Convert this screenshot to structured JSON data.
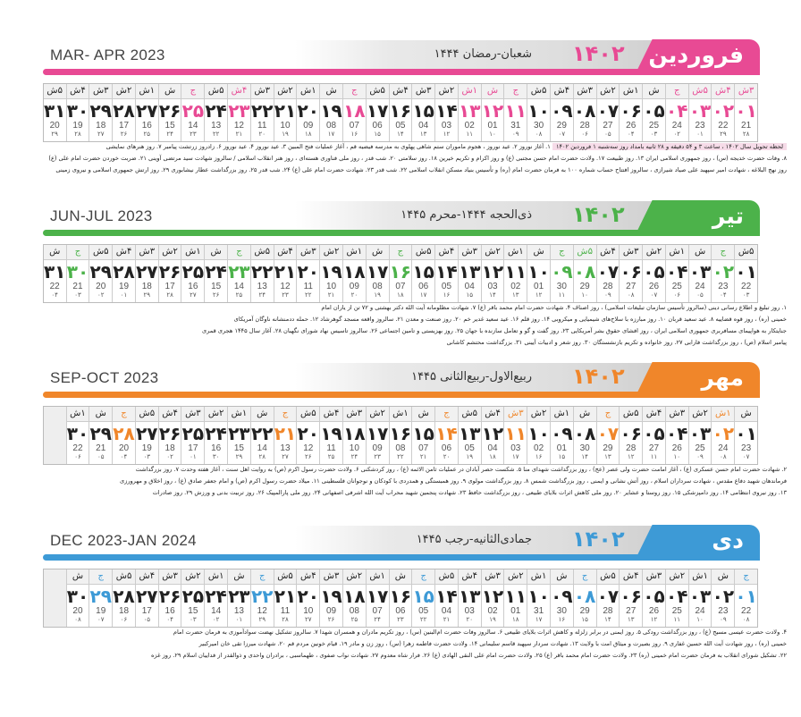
{
  "colors": {
    "farvardin": "#e84a94",
    "tir": "#4cb24a",
    "mehr": "#f0862a",
    "dey": "#3d9ad6"
  },
  "months": [
    {
      "name": "فروردین",
      "year": "۱۴۰۲",
      "hijri_title": "شعبان-رمضان ۱۴۴۴",
      "en_title": "MAR- APR 2023",
      "color": "#e84a94",
      "weekdays": [
        "۳ش",
        "۴ش",
        "۵ش",
        "ج",
        "ش",
        "۱ش",
        "۲ش",
        "۳ش",
        "۴ش",
        "۵ش",
        "ج",
        "ش",
        "۱ش",
        "۲ش",
        "۳ش",
        "۴ش",
        "۵ش",
        "ج",
        "ش",
        "۱ش",
        "۲ش",
        "۳ش",
        "۴ش",
        "۵ش",
        "ج",
        "ش",
        "۱ش",
        "۲ش",
        "۳ش",
        "۴ش",
        "۵ش"
      ],
      "days": [
        "۰۱",
        "۰۲",
        "۰۳",
        "۰۴",
        "۰۵",
        "۰۶",
        "۰۷",
        "۰۸",
        "۰۹",
        "۱۰",
        "۱۱",
        "۱۲",
        "۱۳",
        "۱۴",
        "۱۵",
        "۱۶",
        "۱۷",
        "۱۸",
        "۱۹",
        "۲۰",
        "۲۱",
        "۲۲",
        "۲۳",
        "۲۴",
        "۲۵",
        "۲۶",
        "۲۷",
        "۲۸",
        "۲۹",
        "۳۰",
        "۳۱"
      ],
      "gregorian": [
        "21",
        "22",
        "23",
        "24",
        "25",
        "26",
        "27",
        "28",
        "29",
        "30",
        "31",
        "01",
        "02",
        "03",
        "04",
        "05",
        "06",
        "07",
        "08",
        "09",
        "10",
        "11",
        "12",
        "13",
        "14",
        "15",
        "16",
        "17",
        "18",
        "19",
        "20"
      ],
      "hijri": [
        "۲۸",
        "۲۹",
        "۰۱",
        "۰۲",
        "۰۳",
        "۰۴",
        "۰۵",
        "۰۶",
        "۰۷",
        "۰۸",
        "۰۹",
        "۱۰",
        "۱۱",
        "۱۲",
        "۱۳",
        "۱۴",
        "۱۵",
        "۱۶",
        "۱۷",
        "۱۸",
        "۱۹",
        "۲۰",
        "۲۱",
        "۲۲",
        "۲۳",
        "۲۴",
        "۲۵",
        "۲۶",
        "۲۷",
        "۲۸",
        "۲۹"
      ],
      "holidays": [
        1,
        2,
        3,
        4,
        11,
        12,
        13,
        18,
        23,
        25
      ],
      "highlight": "لحظه تحویل سال ۱۴۰۲ ، ساعت ۳ و ۵۴ دقیقه و ۲۸ ثانیه بامداد روز سه‌شنبه ۱ فروردین ۱۴۰۲",
      "notes": [
        "۱. آغاز نوروز ۲. عید نوروز ، هجوم ماموران ستم شاهی پهلوی به مدرسه فیضیه قم ، آغاز عملیات فتح المبین ۳. عید نوروز ۴. عید نوروز ۶. زادروز زرتشت پیامبر ۷. روز هنرهای نمایشی",
        "۸. وفات حضرت خدیجه (س) ، روز جمهوری اسلامی ایران ۱۳. روز طبیعت ۱۷. ولادت حضرت امام حسن مجتبی (ع) و روز اکرام و تکریم خیرین ۱۸. روز سلامتی ۲۰. شب قدر ، روز ملی فناوری هسته‌ای ، روز هنر انقلاب اسلامی / سالروز شهادت سید مرتضی آوینی ۲۱. ضربت خوردن حضرت امام علی (ع)",
        "روز نهج البلاغه ، شهادت امیر سپهبد علی صیاد شیرازی ، سالروز افتتاح حساب شماره ۱۰۰ به فرمان حضرت امام (ره) و تأسیس بنیاد مسکن انقلاب اسلامی ۲۲. شب قدر ۲۳. شهادت حضرت امام علی (ع) ۲۴. شب قدر ۲۵. روز بزرگداشت عطار نیشابوری ۲۹. روز ارتش جمهوری اسلامی و نیروی زمینی"
      ]
    },
    {
      "name": "تیر",
      "year": "۱۴۰۲",
      "hijri_title": "ذی‌الحجه ۱۴۴۴-محرم ۱۴۴۵",
      "en_title": "JUN-JUL 2023",
      "color": "#4cb24a",
      "weekdays": [
        "۵ش",
        "ج",
        "ش",
        "۱ش",
        "۲ش",
        "۳ش",
        "۴ش",
        "۵ش",
        "ج",
        "ش",
        "۱ش",
        "۲ش",
        "۳ش",
        "۴ش",
        "۵ش",
        "ج",
        "ش",
        "۱ش",
        "۲ش",
        "۳ش",
        "۴ش",
        "۵ش",
        "ج",
        "ش",
        "۱ش",
        "۲ش",
        "۳ش",
        "۴ش",
        "۵ش",
        "ج",
        "ش"
      ],
      "days": [
        "۰۱",
        "۰۲",
        "۰۳",
        "۰۴",
        "۰۵",
        "۰۶",
        "۰۷",
        "۰۸",
        "۰۹",
        "۱۰",
        "۱۱",
        "۱۲",
        "۱۳",
        "۱۴",
        "۱۵",
        "۱۶",
        "۱۷",
        "۱۸",
        "۱۹",
        "۲۰",
        "۲۱",
        "۲۲",
        "۲۳",
        "۲۴",
        "۲۵",
        "۲۶",
        "۲۷",
        "۲۸",
        "۲۹",
        "۳۰",
        "۳۱"
      ],
      "gregorian": [
        "22",
        "23",
        "24",
        "25",
        "26",
        "27",
        "28",
        "29",
        "30",
        "01",
        "02",
        "03",
        "04",
        "05",
        "06",
        "07",
        "08",
        "09",
        "10",
        "11",
        "12",
        "13",
        "14",
        "15",
        "16",
        "17",
        "18",
        "19",
        "20",
        "21",
        "22"
      ],
      "hijri": [
        "۰۳",
        "۰۴",
        "۰۵",
        "۰۶",
        "۰۷",
        "۰۸",
        "۰۹",
        "۱۰",
        "۱۱",
        "۱۲",
        "۱۳",
        "۱۴",
        "۱۵",
        "۱۶",
        "۱۷",
        "۱۸",
        "۱۹",
        "۲۰",
        "۲۱",
        "۲۲",
        "۲۳",
        "۲۴",
        "۲۵",
        "۲۶",
        "۲۷",
        "۲۸",
        "۲۹",
        "۰۱",
        "۰۲",
        "۰۳",
        "۰۴"
      ],
      "holidays": [
        2,
        8,
        9,
        16,
        23,
        30
      ],
      "highlight": "",
      "notes": [
        "۱. روز تبلیغ و اطلاع رسانی دینی (سالروز تأسیس سازمان تبلیغات اسلامی) ، روز اصناف ۴. شهادت حضرت امام محمد باقر (ع) ۷. شهادت مظلومانه آیت الله دکتر بهشتی و ۷۲ تن از یاران امام",
        "خمینی (ره) ، روز قوه قضاییه ۸. عید سعید قربان ۱۰. روز مبارزه با سلاح‌های شیمیایی و میکروبی ۱۴. روز قلم ۱۶. عید سعید غدیر خم ۲۰. روز صنعت و معدن ۲۱. سالروز واقعه مسجد گوهرشاد ۱۲. حمله ددمنشانه ناوگان آمریکای",
        "جنایتکار به هواپیمای مسافربری جمهوری اسلامی ایران ، روز افشای حقوق بشر آمریکایی ۲۳. روز گفت و گو و تعامل سازنده با جهان ۲۵. روز بهزیستی و تامین اجتماعی ۲۶. سالروز تاسیس نهاد شورای نگهبان ۲۸. آغاز سال ۱۴۴۵ هجری قمری",
        "پیامبر اسلام (ص) ، روز بزرگداشت فارابی ۲۷. روز خانواده و تکریم بازنشستگان ۳۰. روز شعر و ادبیات آیینی ۳۱. بزرگداشت محتشم کاشانی"
      ]
    },
    {
      "name": "مهر",
      "year": "۱۴۰۲",
      "hijri_title": "ربیع‌الاول-ربیع‌الثانی ۱۴۴۵",
      "en_title": "SEP-OCT 2023",
      "color": "#f0862a",
      "weekdays": [
        "ش",
        "۱ش",
        "۲ش",
        "۳ش",
        "۴ش",
        "۵ش",
        "ج",
        "ش",
        "۱ش",
        "۲ش",
        "۳ش",
        "۴ش",
        "۵ش",
        "ج",
        "ش",
        "۱ش",
        "۲ش",
        "۳ش",
        "۴ش",
        "۵ش",
        "ج",
        "ش",
        "۱ش",
        "۲ش",
        "۳ش",
        "۴ش",
        "۵ش",
        "ج",
        "ش",
        "۱ش"
      ],
      "days": [
        "۰۱",
        "۰۲",
        "۰۳",
        "۰۴",
        "۰۵",
        "۰۶",
        "۰۷",
        "۰۸",
        "۰۹",
        "۱۰",
        "۱۱",
        "۱۲",
        "۱۳",
        "۱۴",
        "۱۵",
        "۱۶",
        "۱۷",
        "۱۸",
        "۱۹",
        "۲۰",
        "۲۱",
        "۲۲",
        "۲۳",
        "۲۴",
        "۲۵",
        "۲۶",
        "۲۷",
        "۲۸",
        "۲۹",
        "۳۰"
      ],
      "gregorian": [
        "23",
        "24",
        "25",
        "26",
        "27",
        "28",
        "29",
        "30",
        "01",
        "02",
        "03",
        "04",
        "05",
        "06",
        "07",
        "08",
        "09",
        "10",
        "11",
        "12",
        "13",
        "14",
        "15",
        "16",
        "17",
        "18",
        "19",
        "20",
        "21",
        "22"
      ],
      "hijri": [
        "۰۷",
        "۰۸",
        "۰۹",
        "۱۰",
        "۱۱",
        "۱۲",
        "۱۳",
        "۱۴",
        "۱۵",
        "۱۶",
        "۱۷",
        "۱۸",
        "۱۹",
        "۲۰",
        "۲۱",
        "۲۲",
        "۲۳",
        "۲۴",
        "۲۵",
        "۲۶",
        "۲۷",
        "۲۸",
        "۲۹",
        "۳۰",
        "۰۱",
        "۰۲",
        "۰۳",
        "۰۴",
        "۰۵",
        "۰۶"
      ],
      "holidays": [
        2,
        7,
        11,
        14,
        21,
        28
      ],
      "highlight": "",
      "notes": [
        "۲. شهادت حضرت امام حسن عسکری (ع) ، آغاز امامت حضرت ولی عصر (عج) ، روز بزرگداشت شهدای منا ۵. شکست حصر آبادان در عملیات ثامن الائمه (ع) ، روز کردشکنی ۶. ولادت حضرت رسول اکرم (ص) به روایت اهل سنت ، آغاز هفته وحدت ۷. روز بزرگداشت",
        "فرماندهان شهید دفاع مقدس ، شهادت سرداران اسلام ، روز آتش نشانی و ایمنی ، روز بزرگداشت شمس ۸. روز بزرگداشت مولوی ۹. روز همبستگی و همدردی با کودکان و نوجوانان فلسطینی ۱۱. میلاد حضرت رسول اکرم (ص) و امام جعفر صادق (ع) ، روز اخلاق و مهرورزی",
        "۱۳. روز نیروی انتظامی ۱۴. روز دامپزشکی ۱۵. روز روستا و عشایر ۲۰. روز ملی کاهش اثرات بلایای طبیعی ، روز بزرگداشت حافظ ۲۳. شهادت پنجمین شهید محراب آیت الله اشرفی اصفهانی ۲۴. روز ملی پارالمپیک ۲۶. روز تربیت بدنی و ورزش ۲۹. روز صادرات"
      ]
    },
    {
      "name": "دی",
      "year": "۱۴۰۲",
      "hijri_title": "جمادی‌الثانیه-رجب ۱۴۴۵",
      "en_title": "DEC 2023-JAN 2024",
      "color": "#3d9ad6",
      "weekdays": [
        "ج",
        "ش",
        "۱ش",
        "۲ش",
        "۳ش",
        "۴ش",
        "۵ش",
        "ج",
        "ش",
        "۱ش",
        "۲ش",
        "۳ش",
        "۴ش",
        "۵ش",
        "ج",
        "ش",
        "۱ش",
        "۲ش",
        "۳ش",
        "۴ش",
        "۵ش",
        "ج",
        "ش",
        "۱ش",
        "۲ش",
        "۳ش",
        "۴ش",
        "۵ش",
        "ج",
        "ش"
      ],
      "days": [
        "۰۱",
        "۰۲",
        "۰۳",
        "۰۴",
        "۰۵",
        "۰۶",
        "۰۷",
        "۰۸",
        "۰۹",
        "۱۰",
        "۱۱",
        "۱۲",
        "۱۳",
        "۱۴",
        "۱۵",
        "۱۶",
        "۱۷",
        "۱۸",
        "۱۹",
        "۲۰",
        "۲۱",
        "۲۲",
        "۲۳",
        "۲۴",
        "۲۵",
        "۲۶",
        "۲۷",
        "۲۸",
        "۲۹",
        "۳۰"
      ],
      "gregorian": [
        "22",
        "23",
        "24",
        "25",
        "26",
        "27",
        "28",
        "29",
        "30",
        "31",
        "01",
        "02",
        "03",
        "04",
        "05",
        "06",
        "07",
        "08",
        "09",
        "10",
        "11",
        "12",
        "13",
        "14",
        "15",
        "16",
        "17",
        "18",
        "19",
        "20"
      ],
      "hijri": [
        "۰۸",
        "۰۹",
        "۱۰",
        "۱۱",
        "۱۲",
        "۱۳",
        "۱۴",
        "۱۵",
        "۱۶",
        "۱۷",
        "۱۸",
        "۱۹",
        "۲۰",
        "۲۱",
        "۲۲",
        "۲۳",
        "۲۴",
        "۲۵",
        "۲۶",
        "۲۷",
        "۲۸",
        "۲۹",
        "۰۱",
        "۰۲",
        "۰۳",
        "۰۴",
        "۰۵",
        "۰۶",
        "۰۷",
        "۰۸"
      ],
      "holidays": [
        1,
        8,
        15,
        22,
        29
      ],
      "highlight": "",
      "notes": [
        "۴. ولادت حضرت عیسی مسیح (ع) ، روز بزرگداشت رودکی ۵. روز ایمنی در برابر زلزله و کاهش اثرات بلایای طبیعی ۶. سالروز وفات حضرت ام‌البنین (س) ، روز تکریم مادران و همسران شهدا ۷. سالروز تشکیل نهضت سوادآموزی به فرمان حضرت امام",
        "خمینی (ره) ، روز شهادت آیت الله حسین غفاری ۹. روز بصیرت و میثاق امت با ولایت ۱۳. شهادت سردار سپهبد قاسم سلیمانی ۱۴. ولادت حضرت فاطمه زهرا (س) ، روز زن و مادر ۱۹. قیام خونین مردم قم ۲۰. شهادت میرزا تقی خان امیرکبیر",
        "۲۲. تشکیل شورای انقلاب به فرمان حضرت امام خمینی (ره) ۲۳. ولادت حضرت امام محمد باقر (ع) ۲۵. ولادت حضرت امام علی النقی الهادی (ع) ۲۶. فرار شاه معدوم ۲۷. شهادت نواب صفوی ، طهماسبی ، برادران واحدی و ذوالقدر از فداییان اسلام ۲۹. روز غزه"
      ]
    }
  ]
}
